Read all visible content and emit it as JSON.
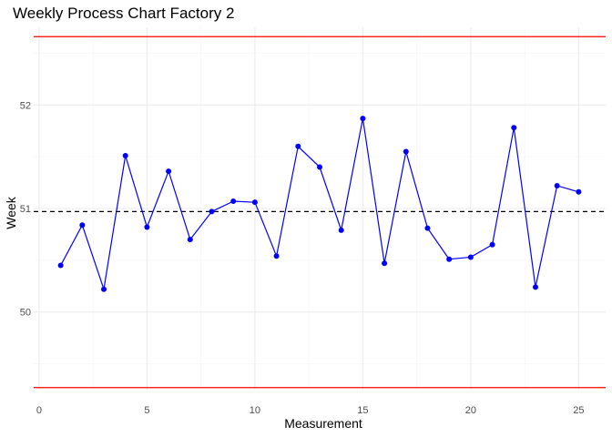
{
  "chart_data": {
    "type": "line",
    "title": "Weekly Process Chart Factory 2",
    "xlabel": "Measurement",
    "ylabel": "Week",
    "xlim": [
      -0.25,
      26.25
    ],
    "ylim": [
      49.25,
      52.75
    ],
    "x_ticks": [
      0,
      5,
      10,
      15,
      20,
      25
    ],
    "y_ticks": [
      50,
      51,
      52
    ],
    "grid": true,
    "series": [
      {
        "color": "#0000ff",
        "x": [
          1,
          2,
          3,
          4,
          5,
          6,
          7,
          8,
          9,
          10,
          11,
          12,
          13,
          14,
          15,
          16,
          17,
          18,
          19,
          20,
          21,
          22,
          23,
          24,
          25
        ],
        "values": [
          50.45,
          50.84,
          50.22,
          51.51,
          50.82,
          51.36,
          50.7,
          50.97,
          51.07,
          51.06,
          50.54,
          51.6,
          51.4,
          50.79,
          51.87,
          50.47,
          51.55,
          50.81,
          50.51,
          50.53,
          50.65,
          51.78,
          50.24,
          51.22,
          51.16
        ]
      }
    ],
    "reference_lines": [
      {
        "type": "upper_limit",
        "y": 52.66,
        "color": "#ff0000",
        "style": "solid"
      },
      {
        "type": "center_line",
        "y": 50.97,
        "color": "#000000",
        "style": "dashed"
      },
      {
        "type": "lower_limit",
        "y": 49.27,
        "color": "#ff0000",
        "style": "solid"
      }
    ]
  }
}
